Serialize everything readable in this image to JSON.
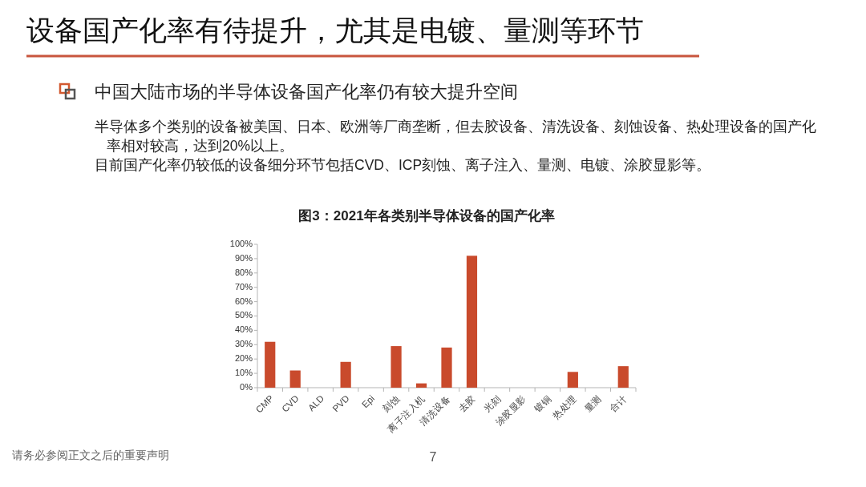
{
  "chart_data": {
    "type": "bar",
    "title": "设备国产化率有待提升，尤其是电镀、量测等环节",
    "subtitle": "中国大陆市场的半导体设备国产化率仍有较大提升空间",
    "annotations": [
      "半导体多个类别的设备被美国、日本、欧洲等厂商垄断，但去胶设备、清洗设备、刻蚀设备、热处理设备的国产化率相对较高，达到20%以上。",
      "目前国产化率仍较低的设备细分环节包括CVD、ICP刻蚀、离子注入、量测、电镀、涂胶显影等。",
      "图3：2021年各类别半导体设备的国产化率",
      "请务必参阅正文之后的重要声明",
      "7"
    ],
    "categories": [
      "CMP",
      "CVD",
      "ALD",
      "PVD",
      "Epi",
      "刻蚀",
      "离子注入机",
      "清洗设备",
      "去胶",
      "光刻",
      "涂胶显影",
      "镀铜",
      "热处理",
      "量测",
      "合计"
    ],
    "values": [
      32,
      12,
      0,
      18,
      0,
      29,
      3,
      28,
      92,
      0,
      0,
      0,
      11,
      0,
      15
    ],
    "color": "#c94a2c",
    "ylim": [
      0,
      100
    ],
    "yticks": [
      {
        "value": 0,
        "label": "0%"
      },
      {
        "value": 10,
        "label": "10%"
      },
      {
        "value": 20,
        "label": "20%"
      },
      {
        "value": 30,
        "label": "30%"
      },
      {
        "value": 40,
        "label": "40%"
      },
      {
        "value": 50,
        "label": "50%"
      },
      {
        "value": 60,
        "label": "60%"
      },
      {
        "value": 70,
        "label": "70%"
      },
      {
        "value": 80,
        "label": "80%"
      },
      {
        "value": 90,
        "label": "90%"
      },
      {
        "value": 100,
        "label": "100%"
      }
    ]
  }
}
